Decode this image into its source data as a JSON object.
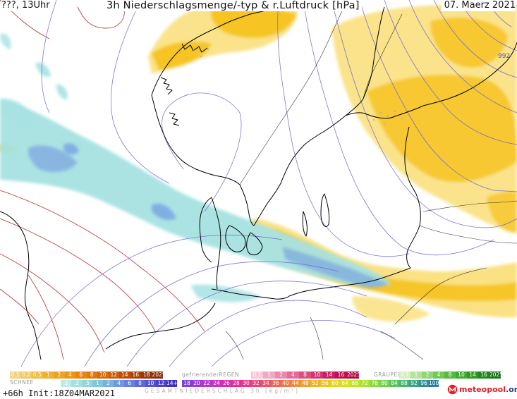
{
  "header": {
    "left": "???, 13Uhr",
    "title": "3h Niederschlagsmenge/-typ & r.Luftdruck [hPa]",
    "date": "07. Maerz 2021"
  },
  "map": {
    "isobar_label": "992",
    "colors": {
      "rain": "#f6c21a",
      "rain_light": "#f9de75",
      "snow": "#a7e2e2",
      "snow_dark": "#7aa2e0",
      "isobar": "#6a5fd0",
      "isotherm": "#b03030",
      "coast": "#000000"
    }
  },
  "legend": {
    "rain": {
      "label": "",
      "values": [
        "0.1",
        "0.2",
        "0.5",
        "1",
        "2",
        "4",
        "6",
        "8",
        "10",
        "12",
        "14",
        "16",
        "18",
        "2025+"
      ],
      "colors": [
        "#f3d27a",
        "#f2c860",
        "#f1bc42",
        "#f0b030",
        "#efa21f",
        "#ee9416",
        "#e9860f",
        "#e2780c",
        "#d86a09",
        "#cc5c07",
        "#be4e05",
        "#ae4004",
        "#9c3403",
        "#8a2a02"
      ]
    },
    "freezing_rain": {
      "label": "gefrierenderREGEN",
      "values": [
        "0.1",
        "1",
        "2",
        "4",
        "8",
        "10",
        "14",
        "16",
        "2025+"
      ],
      "colors": [
        "#f7c8d8",
        "#f2a7c2",
        "#ec88ad",
        "#e56a99",
        "#dd4e85",
        "#d53472",
        "#cc1e60",
        "#c20e50",
        "#b50541"
      ]
    },
    "graupel": {
      "label": "GRAUPEL",
      "values": [
        "0.1",
        "1",
        "2",
        "4",
        "8",
        "10",
        "14",
        "16",
        "2025+"
      ],
      "colors": [
        "#d4efc0",
        "#b4e39a",
        "#93d676",
        "#72c957",
        "#55bb3f",
        "#3cab2e",
        "#2a9a24",
        "#1f881c",
        "#147515"
      ]
    },
    "snow": {
      "label": "SCHNEE",
      "values": [
        ".1",
        ".2",
        ".5",
        "1",
        "2",
        "4",
        "6",
        "8",
        "10",
        "12",
        "14+"
      ],
      "colors": [
        "#bfe9ea",
        "#a7e0e2",
        "#90d6db",
        "#7fc7dc",
        "#78b1e0",
        "#6f98e2",
        "#6880e0",
        "#5f69db",
        "#5553d3",
        "#4b40c8",
        "#402fba"
      ]
    },
    "total": {
      "label": "GESAMTNIEDERSCHLAG 3h [kg/m²]",
      "values": [
        "18",
        "20",
        "22",
        "24",
        "26",
        "28",
        "30",
        "32",
        "34",
        "36",
        "40",
        "44",
        "48",
        "52",
        "56",
        "60",
        "64",
        "68",
        "72",
        "76",
        "80",
        "84",
        "88",
        "92",
        "96",
        "100"
      ],
      "colors": [
        "#8040d8",
        "#9a3cd4",
        "#b238cc",
        "#c632bf",
        "#d62dae",
        "#e0309c",
        "#e6398a",
        "#ea4578",
        "#ed5468",
        "#ef6558",
        "#f0784a",
        "#f08c3e",
        "#efa034",
        "#edb42c",
        "#e9c626",
        "#e2d622",
        "#d4e022",
        "#c0e428",
        "#a8e232",
        "#8cdc40",
        "#72d250",
        "#5ac462",
        "#48b474",
        "#3aa286",
        "#309096",
        "#287ea4"
      ]
    }
  },
  "run_info": "+66h Init:18Z04MAR2021",
  "brand": {
    "part1": "meteo",
    "part2": "pool",
    "part3": ".org"
  }
}
